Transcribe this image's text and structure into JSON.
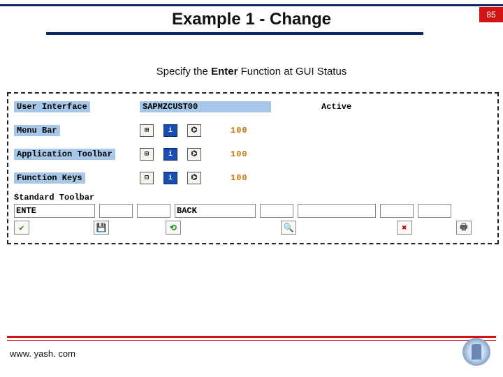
{
  "colors": {
    "accent_navy": "#0a2a66",
    "accent_red": "#d11313",
    "field_blue": "#a7c7e8",
    "num_orange": "#c47500",
    "info_blue": "#1a4db3"
  },
  "header": {
    "title": "Example 1 - Change",
    "page_number": "85"
  },
  "subtitle": {
    "prefix": "Specify the ",
    "bold": "Enter",
    "suffix": " Function at GUI Status"
  },
  "sap": {
    "user_interface": {
      "label": "User Interface",
      "value": "SAPMZCUST00",
      "status": "Active"
    },
    "rows": [
      {
        "label": "Menu Bar",
        "expanded": false,
        "value": "100"
      },
      {
        "label": "Application Toolbar",
        "expanded": false,
        "value": "100"
      },
      {
        "label": "Function Keys",
        "expanded": true,
        "value": "100"
      }
    ],
    "standard_toolbar": {
      "header": "Standard Toolbar",
      "fields": [
        {
          "text": "ENTE",
          "width": 110
        },
        {
          "text": "",
          "width": 46
        },
        {
          "text": "",
          "width": 46
        },
        {
          "text": "BACK",
          "width": 110
        },
        {
          "text": "",
          "width": 46
        },
        {
          "text": "",
          "width": 110
        },
        {
          "text": "",
          "width": 46
        },
        {
          "text": "",
          "width": 46
        }
      ],
      "icons": [
        {
          "name": "enter-check-icon",
          "glyph": "✔",
          "color": "#1a8a1a",
          "width": 110
        },
        {
          "name": "save-disk-icon",
          "glyph": "💾",
          "color": "#555",
          "width": 46
        },
        {
          "name": "spacer",
          "glyph": "",
          "color": "",
          "width": 46
        },
        {
          "name": "back-arrow-icon",
          "glyph": "⟲",
          "color": "#1a8a1a",
          "width": 110
        },
        {
          "name": "spacer",
          "glyph": "",
          "color": "",
          "width": 46
        },
        {
          "name": "find-icon",
          "glyph": "🔍",
          "color": "#c47500",
          "width": 110
        },
        {
          "name": "spacer",
          "glyph": "",
          "color": "",
          "width": 46
        },
        {
          "name": "cancel-x-icon",
          "glyph": "✖",
          "color": "#c00",
          "width": 46
        },
        {
          "name": "spacer",
          "glyph": "",
          "color": "",
          "width": 28
        },
        {
          "name": "print-icon",
          "glyph": "🖶",
          "color": "#555",
          "width": 46
        }
      ]
    }
  },
  "footer": {
    "url": "www. yash. com"
  }
}
